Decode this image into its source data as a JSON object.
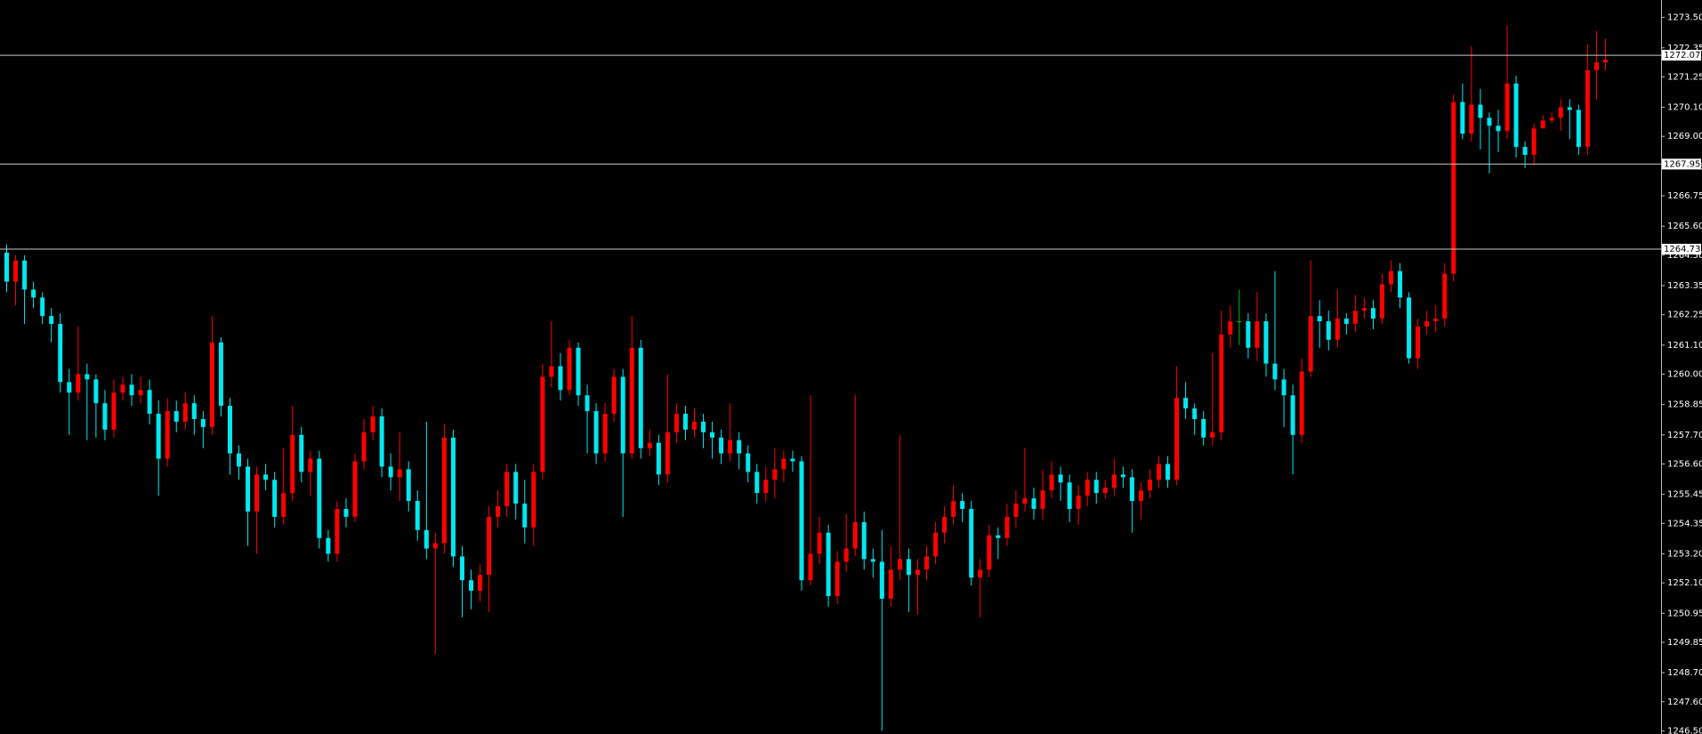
{
  "chart_data": {
    "type": "candlestick",
    "up_color": "#ff0000",
    "down_color": "#00e8f0",
    "doji_color": "#00c000",
    "level_color": "#c8c8c8",
    "ylim": [
      1246.38,
      1274.16
    ],
    "yticks": [
      {
        "value": 1273.5,
        "label": "1273.50"
      },
      1272.35,
      1271.25,
      {
        "value": 1270.1,
        "label": "1270.10"
      },
      {
        "value": 1269,
        "label": "1269.00"
      },
      1267.85,
      1266.75,
      {
        "value": 1265.6,
        "label": "1265.60"
      },
      {
        "value": 1264.5,
        "label": "1264.50"
      },
      1263.35,
      1262.25,
      {
        "value": 1261.1,
        "label": "1261.10"
      },
      {
        "value": 1260,
        "label": "1260.00"
      },
      1258.85,
      {
        "value": 1257.7,
        "label": "1257.70"
      },
      {
        "value": 1256.6,
        "label": "1256.60"
      },
      1255.45,
      1254.35,
      {
        "value": 1253.2,
        "label": "1253.20"
      },
      {
        "value": 1252.1,
        "label": "1252.10"
      },
      1250.95,
      1249.85,
      {
        "value": 1248.7,
        "label": "1248.70"
      },
      {
        "value": 1247.6,
        "label": "1247.60"
      },
      {
        "value": 1246.5,
        "label": "1246.50"
      }
    ],
    "levels": [
      1272.07,
      1267.95,
      1264.73
    ],
    "open": [
      1264.6,
      1263.5,
      1264.3,
      1263.2,
      1262.9,
      1262.2,
      1261.9,
      1259.7,
      1259.3,
      1260.0,
      1259.8,
      1258.9,
      1257.9,
      1259.3,
      1259.6,
      1259.2,
      1259.4,
      1258.5,
      1256.8,
      1258.6,
      1258.2,
      1258.9,
      1258.3,
      1258.0,
      1261.2,
      1258.8,
      1257.0,
      1256.5,
      1254.8,
      1256.2,
      1256.0,
      1254.6,
      1255.5,
      1257.7,
      1256.3,
      1256.8,
      1253.8,
      1253.2,
      1254.9,
      1254.6,
      1256.7,
      1257.8,
      1258.4,
      1256.5,
      1256.1,
      1256.4,
      1255.2,
      1254.1,
      1253.4,
      1253.6,
      1257.6,
      1253.1,
      1252.2,
      1251.8,
      1252.4,
      1254.6,
      1255.0,
      1256.3,
      1255.1,
      1254.2,
      1256.3,
      1259.9,
      1260.3,
      1259.4,
      1261.0,
      1259.2,
      1258.6,
      1257.0,
      1258.5,
      1259.9,
      1257.0,
      1261.0,
      1257.2,
      1257.4,
      1256.2,
      1257.8,
      1258.5,
      1257.9,
      1258.2,
      1257.8,
      1257.6,
      1257.0,
      1257.5,
      1257.0,
      1256.3,
      1255.5,
      1256.0,
      1256.4,
      1256.8,
      1256.7,
      1252.2,
      1253.2,
      1254.0,
      1251.6,
      1252.9,
      1253.4,
      1254.4,
      1253.0,
      1252.9,
      1251.5,
      1252.6,
      1253.0,
      1252.4,
      1252.6,
      1253.1,
      1254.0,
      1254.6,
      1255.2,
      1254.9,
      1252.3,
      1252.6,
      1253.9,
      1253.8,
      1254.6,
      1255.1,
      1255.3,
      1254.9,
      1255.6,
      1256.2,
      1255.9,
      1254.9,
      1255.4,
      1256.0,
      1255.5,
      1255.7,
      1256.2,
      1256.1,
      1255.2,
      1255.6,
      1256.0,
      1256.6,
      1256.0,
      1259.1,
      1258.7,
      1258.3,
      1257.6,
      1257.8,
      1261.5,
      1262.0,
      1262.0,
      1261.0,
      1262.0,
      1260.4,
      1259.8,
      1259.2,
      1257.7,
      1260.1,
      1262.2,
      1262.0,
      1261.3,
      1262.1,
      1261.9,
      1262.4,
      1262.5,
      1262.1,
      1263.4,
      1263.9,
      1262.9,
      1260.6,
      1261.8,
      1262.0,
      1262.1,
      1263.8,
      1270.3,
      1269.1,
      1270.2,
      1269.7,
      1269.4,
      1269.2,
      1271.0,
      1268.6,
      1268.3,
      1269.3,
      1269.6,
      1269.7,
      1270.1,
      1270.0,
      1268.6,
      1271.5,
      1271.8
    ],
    "high": [
      1264.9,
      1264.5,
      1264.5,
      1263.5,
      1263.1,
      1262.5,
      1262.3,
      1260.2,
      1261.8,
      1260.4,
      1260.0,
      1259.4,
      1259.8,
      1259.9,
      1260.0,
      1259.9,
      1259.8,
      1259.0,
      1259.1,
      1259.0,
      1259.3,
      1259.2,
      1258.6,
      1262.2,
      1261.4,
      1259.1,
      1257.3,
      1256.8,
      1256.5,
      1256.6,
      1256.3,
      1257.2,
      1258.8,
      1258.0,
      1257.1,
      1257.1,
      1254.1,
      1255.2,
      1255.3,
      1257.0,
      1258.3,
      1258.8,
      1258.7,
      1257.0,
      1257.8,
      1256.7,
      1255.6,
      1258.2,
      1254.0,
      1258.1,
      1257.9,
      1253.5,
      1252.6,
      1252.8,
      1255.0,
      1255.6,
      1256.6,
      1256.6,
      1256.0,
      1256.6,
      1260.4,
      1262.0,
      1260.8,
      1261.3,
      1261.2,
      1259.6,
      1258.9,
      1258.9,
      1260.2,
      1260.2,
      1262.2,
      1261.3,
      1257.9,
      1257.7,
      1260.0,
      1258.9,
      1258.8,
      1258.7,
      1258.5,
      1258.2,
      1257.9,
      1258.9,
      1257.8,
      1257.3,
      1256.6,
      1256.5,
      1257.2,
      1257.1,
      1257.1,
      1256.9,
      1259.2,
      1254.6,
      1254.3,
      1253.3,
      1254.7,
      1259.2,
      1254.8,
      1253.4,
      1254.1,
      1253.5,
      1257.7,
      1253.4,
      1253.0,
      1253.5,
      1254.4,
      1255.0,
      1255.8,
      1255.5,
      1255.2,
      1253.0,
      1254.3,
      1254.2,
      1255.1,
      1255.6,
      1257.2,
      1255.7,
      1256.4,
      1256.7,
      1256.5,
      1256.2,
      1255.8,
      1256.3,
      1256.3,
      1256.0,
      1256.8,
      1256.5,
      1256.4,
      1255.9,
      1256.4,
      1256.9,
      1256.9,
      1260.3,
      1259.7,
      1258.9,
      1258.6,
      1260.8,
      1262.4,
      1262.6,
      1263.2,
      1262.3,
      1263.1,
      1262.3,
      1263.9,
      1260.2,
      1259.6,
      1260.6,
      1264.3,
      1262.8,
      1262.4,
      1263.2,
      1262.3,
      1263.0,
      1262.9,
      1262.8,
      1263.8,
      1264.3,
      1264.2,
      1263.1,
      1262.1,
      1262.4,
      1262.6,
      1264.2,
      1270.6,
      1271.0,
      1272.4,
      1270.8,
      1269.9,
      1270.0,
      1273.2,
      1271.3,
      1268.8,
      1269.5,
      1269.8,
      1269.9,
      1270.4,
      1270.4,
      1270.2,
      1272.5,
      1273.0,
      1272.7
    ],
    "low": [
      1263.1,
      1262.6,
      1261.9,
      1262.5,
      1261.9,
      1261.2,
      1259.3,
      1257.7,
      1259.0,
      1257.5,
      1257.6,
      1257.5,
      1257.6,
      1259.0,
      1258.8,
      1258.9,
      1258.1,
      1255.4,
      1256.5,
      1257.8,
      1257.9,
      1257.7,
      1257.2,
      1257.7,
      1258.4,
      1256.2,
      1256.0,
      1253.5,
      1253.2,
      1255.6,
      1254.2,
      1254.3,
      1255.2,
      1255.9,
      1255.4,
      1253.4,
      1252.9,
      1252.9,
      1254.2,
      1254.4,
      1256.4,
      1257.5,
      1256.1,
      1255.6,
      1255.2,
      1254.8,
      1253.7,
      1253.0,
      1249.4,
      1253.2,
      1252.7,
      1250.8,
      1251.1,
      1251.4,
      1251.0,
      1254.2,
      1254.6,
      1254.5,
      1253.6,
      1253.5,
      1256.0,
      1259.5,
      1259.0,
      1259.2,
      1258.8,
      1257.0,
      1256.6,
      1256.7,
      1258.2,
      1254.6,
      1256.8,
      1256.8,
      1256.9,
      1255.8,
      1255.9,
      1257.4,
      1257.5,
      1257.6,
      1257.2,
      1256.8,
      1256.6,
      1256.7,
      1256.4,
      1255.9,
      1255.1,
      1255.2,
      1255.3,
      1255.9,
      1256.3,
      1251.8,
      1252.0,
      1252.8,
      1251.2,
      1251.3,
      1252.5,
      1253.1,
      1252.6,
      1252.3,
      1246.5,
      1251.2,
      1252.2,
      1251.0,
      1250.9,
      1252.2,
      1252.8,
      1253.6,
      1254.3,
      1254.4,
      1252.0,
      1250.8,
      1252.3,
      1253.0,
      1253.5,
      1254.2,
      1254.8,
      1254.5,
      1254.5,
      1255.3,
      1255.2,
      1254.4,
      1254.3,
      1255.0,
      1255.1,
      1255.3,
      1255.4,
      1255.7,
      1254.0,
      1254.5,
      1255.3,
      1255.7,
      1255.7,
      1255.8,
      1258.3,
      1257.7,
      1257.3,
      1257.3,
      1257.5,
      1261.0,
      1261.1,
      1260.6,
      1260.5,
      1259.9,
      1259.4,
      1258.0,
      1256.2,
      1257.4,
      1259.9,
      1261.0,
      1260.9,
      1261.0,
      1261.5,
      1261.6,
      1262.1,
      1261.7,
      1261.9,
      1263.1,
      1262.5,
      1260.4,
      1260.2,
      1261.5,
      1261.6,
      1261.8,
      1263.5,
      1268.9,
      1268.8,
      1268.5,
      1267.6,
      1268.4,
      1268.9,
      1268.2,
      1267.8,
      1267.9,
      1269.4,
      1269.5,
      1269.2,
      1268.9,
      1268.3,
      1268.3,
      1270.4,
      1271.5
    ],
    "close": [
      1263.5,
      1264.3,
      1263.2,
      1262.9,
      1262.2,
      1261.9,
      1259.7,
      1259.3,
      1260.0,
      1259.8,
      1258.9,
      1257.9,
      1259.3,
      1259.6,
      1259.2,
      1259.4,
      1258.5,
      1256.8,
      1258.6,
      1258.2,
      1258.9,
      1258.3,
      1258.0,
      1261.2,
      1258.8,
      1257.0,
      1256.5,
      1254.8,
      1256.2,
      1256.0,
      1254.6,
      1255.5,
      1257.7,
      1256.3,
      1256.8,
      1253.8,
      1253.2,
      1254.9,
      1254.6,
      1256.7,
      1257.8,
      1258.4,
      1256.5,
      1256.1,
      1256.4,
      1255.2,
      1254.1,
      1253.4,
      1253.6,
      1257.6,
      1253.1,
      1252.2,
      1251.8,
      1252.4,
      1254.6,
      1255.0,
      1256.3,
      1255.1,
      1254.2,
      1256.3,
      1259.9,
      1260.3,
      1259.4,
      1261.0,
      1259.2,
      1258.6,
      1257.0,
      1258.5,
      1259.9,
      1257.0,
      1261.0,
      1257.2,
      1257.4,
      1256.2,
      1257.8,
      1258.5,
      1257.9,
      1258.2,
      1257.8,
      1257.6,
      1257.0,
      1257.5,
      1257.0,
      1256.3,
      1255.5,
      1256.0,
      1256.4,
      1256.8,
      1256.7,
      1252.2,
      1253.2,
      1254.0,
      1251.6,
      1252.9,
      1253.4,
      1254.4,
      1253.0,
      1252.9,
      1251.5,
      1252.6,
      1253.0,
      1252.4,
      1252.6,
      1253.1,
      1254.0,
      1254.6,
      1255.2,
      1254.9,
      1252.3,
      1252.6,
      1253.9,
      1253.8,
      1254.6,
      1255.1,
      1255.3,
      1254.9,
      1255.6,
      1256.2,
      1255.9,
      1254.9,
      1255.4,
      1256.0,
      1255.5,
      1255.7,
      1256.2,
      1256.1,
      1255.2,
      1255.6,
      1256.0,
      1256.6,
      1256.0,
      1259.1,
      1258.7,
      1258.3,
      1257.6,
      1257.8,
      1261.5,
      1262.0,
      1262.0,
      1261.0,
      1262.0,
      1260.4,
      1259.8,
      1259.2,
      1257.7,
      1260.1,
      1262.2,
      1262.0,
      1261.3,
      1262.1,
      1261.9,
      1262.4,
      1262.5,
      1262.1,
      1263.4,
      1263.9,
      1262.9,
      1260.6,
      1261.8,
      1262.0,
      1262.1,
      1263.8,
      1270.3,
      1269.1,
      1270.2,
      1269.7,
      1269.4,
      1269.2,
      1271.0,
      1268.6,
      1268.3,
      1269.3,
      1269.6,
      1269.7,
      1270.1,
      1270.0,
      1268.6,
      1271.5,
      1271.8,
      1271.9
    ]
  }
}
